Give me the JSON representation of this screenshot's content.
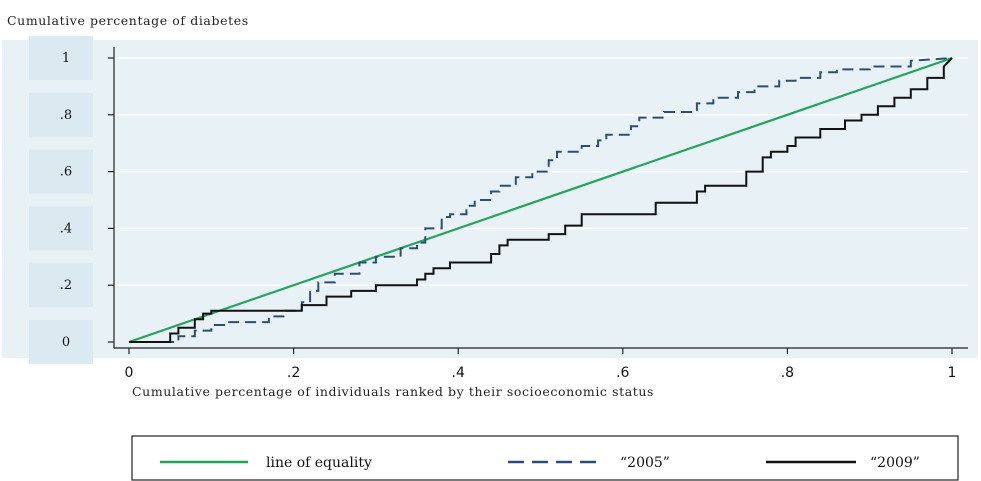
{
  "chart_data": {
    "type": "line",
    "ylabel": "Cumulative percentage of diabetes",
    "xlabel": "Cumulative percentage of individuals ranked by their socioeconomic status",
    "xlim": [
      0,
      1
    ],
    "ylim": [
      0,
      1
    ],
    "x_ticks": [
      "0",
      ".2",
      ".4",
      ".6",
      ".8",
      "1"
    ],
    "y_ticks": [
      "0",
      ".2",
      ".4",
      ".6",
      ".8",
      "1"
    ],
    "grid": "horizontal",
    "legend_position": "bottom",
    "colors": {
      "plot_background": "#e8f1f6",
      "ytick_box": "#dbe9f1",
      "equality": "#22a55b",
      "s2005": "#2b4f72",
      "s2009": "#111111"
    },
    "series": [
      {
        "name": "line of equality",
        "style": "solid",
        "x": [
          0,
          1
        ],
        "y": [
          0,
          1
        ]
      },
      {
        "name": "“2005”",
        "style": "dashed",
        "x": [
          0,
          0.06,
          0.06,
          0.08,
          0.08,
          0.1,
          0.1,
          0.12,
          0.12,
          0.17,
          0.17,
          0.19,
          0.19,
          0.21,
          0.21,
          0.22,
          0.22,
          0.23,
          0.23,
          0.25,
          0.25,
          0.28,
          0.28,
          0.3,
          0.3,
          0.33,
          0.33,
          0.35,
          0.35,
          0.36,
          0.36,
          0.38,
          0.38,
          0.39,
          0.39,
          0.41,
          0.41,
          0.42,
          0.42,
          0.44,
          0.44,
          0.45,
          0.45,
          0.47,
          0.47,
          0.49,
          0.49,
          0.51,
          0.51,
          0.52,
          0.52,
          0.55,
          0.55,
          0.57,
          0.57,
          0.58,
          0.58,
          0.61,
          0.61,
          0.62,
          0.62,
          0.65,
          0.65,
          0.69,
          0.69,
          0.71,
          0.71,
          0.72,
          0.72,
          0.74,
          0.74,
          0.76,
          0.76,
          0.79,
          0.79,
          0.81,
          0.81,
          0.84,
          0.84,
          0.86,
          0.86,
          0.9,
          0.9,
          0.95,
          0.95,
          1.0
        ],
        "y": [
          0,
          0,
          0.02,
          0.02,
          0.04,
          0.04,
          0.06,
          0.06,
          0.07,
          0.07,
          0.09,
          0.09,
          0.11,
          0.11,
          0.14,
          0.14,
          0.18,
          0.18,
          0.21,
          0.21,
          0.24,
          0.24,
          0.28,
          0.28,
          0.3,
          0.3,
          0.33,
          0.33,
          0.35,
          0.35,
          0.4,
          0.4,
          0.44,
          0.44,
          0.45,
          0.45,
          0.48,
          0.48,
          0.5,
          0.5,
          0.53,
          0.53,
          0.55,
          0.55,
          0.58,
          0.58,
          0.6,
          0.6,
          0.64,
          0.64,
          0.67,
          0.67,
          0.69,
          0.69,
          0.71,
          0.71,
          0.73,
          0.73,
          0.76,
          0.76,
          0.79,
          0.79,
          0.81,
          0.81,
          0.84,
          0.84,
          0.86,
          0.86,
          0.86,
          0.86,
          0.88,
          0.88,
          0.9,
          0.9,
          0.92,
          0.92,
          0.93,
          0.93,
          0.95,
          0.95,
          0.96,
          0.96,
          0.97,
          0.97,
          0.99,
          1.0
        ]
      },
      {
        "name": "“2009”",
        "style": "solid",
        "x": [
          0,
          0.05,
          0.05,
          0.06,
          0.06,
          0.08,
          0.08,
          0.09,
          0.09,
          0.1,
          0.1,
          0.13,
          0.13,
          0.21,
          0.21,
          0.24,
          0.24,
          0.27,
          0.27,
          0.3,
          0.3,
          0.35,
          0.35,
          0.36,
          0.36,
          0.37,
          0.37,
          0.39,
          0.39,
          0.44,
          0.44,
          0.45,
          0.45,
          0.46,
          0.46,
          0.51,
          0.51,
          0.53,
          0.53,
          0.55,
          0.55,
          0.64,
          0.64,
          0.69,
          0.69,
          0.7,
          0.7,
          0.75,
          0.75,
          0.77,
          0.77,
          0.78,
          0.78,
          0.8,
          0.8,
          0.81,
          0.81,
          0.84,
          0.84,
          0.87,
          0.87,
          0.89,
          0.89,
          0.91,
          0.91,
          0.93,
          0.93,
          0.95,
          0.95,
          0.97,
          0.97,
          0.99,
          0.99,
          1.0
        ],
        "y": [
          0,
          0,
          0.03,
          0.03,
          0.05,
          0.05,
          0.08,
          0.08,
          0.1,
          0.1,
          0.11,
          0.11,
          0.11,
          0.11,
          0.13,
          0.13,
          0.16,
          0.16,
          0.18,
          0.18,
          0.2,
          0.2,
          0.22,
          0.22,
          0.24,
          0.24,
          0.26,
          0.26,
          0.28,
          0.28,
          0.31,
          0.31,
          0.34,
          0.34,
          0.36,
          0.36,
          0.38,
          0.38,
          0.41,
          0.41,
          0.45,
          0.45,
          0.49,
          0.49,
          0.53,
          0.53,
          0.55,
          0.55,
          0.6,
          0.6,
          0.65,
          0.65,
          0.67,
          0.67,
          0.69,
          0.69,
          0.72,
          0.72,
          0.75,
          0.75,
          0.78,
          0.78,
          0.8,
          0.8,
          0.83,
          0.83,
          0.86,
          0.86,
          0.89,
          0.89,
          0.93,
          0.93,
          0.97,
          1.0
        ]
      }
    ]
  }
}
